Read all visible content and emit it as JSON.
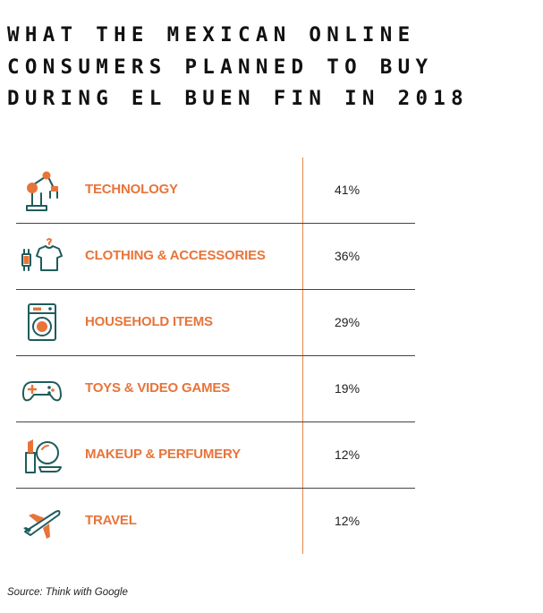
{
  "title_lines": [
    "WHAT THE MEXICAN ONLINE",
    "CONSUMERS PLANNED TO BUY",
    "DURING EL BUEN FIN IN 2018"
  ],
  "colors": {
    "accent": "#e8743a",
    "icon_teal": "#1f5c5c",
    "divider": "#444444"
  },
  "chart_data": {
    "type": "table",
    "title": "WHAT THE MEXICAN ONLINE CONSUMERS PLANNED TO BUY DURING EL BUEN FIN IN 2018",
    "categories": [
      "TECHNOLOGY",
      "CLOTHING & ACCESSORIES",
      "HOUSEHOLD ITEMS",
      "TOYS & VIDEO GAMES",
      "MAKEUP & PERFUMERY",
      "TRAVEL"
    ],
    "values": [
      41,
      36,
      29,
      19,
      12,
      12
    ],
    "value_labels": [
      "41%",
      "36%",
      "29%",
      "19%",
      "12%",
      "12%"
    ],
    "icons": [
      "robot-arm-icon",
      "watch-tshirt-icon",
      "washing-machine-icon",
      "gamepad-icon",
      "lipstick-mirror-icon",
      "airplane-icon"
    ]
  },
  "source": "Source: Think with Google"
}
